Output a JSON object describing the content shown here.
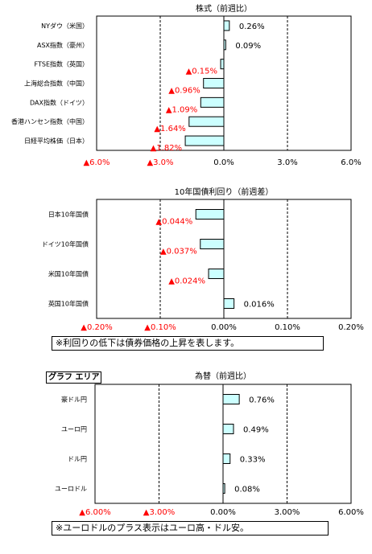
{
  "chart_data": [
    {
      "type": "bar",
      "orientation": "horizontal",
      "title": "株式（前週比）",
      "categories": [
        "NYダウ（米国）",
        "ASX指数（豪州）",
        "FTSE指数（英国）",
        "上海総合指数（中国）",
        "DAX指数（ドイツ）",
        "香港ハンセン指数（中国）",
        "日経平均株価（日本）"
      ],
      "values": [
        0.26,
        0.09,
        -0.15,
        -0.96,
        -1.09,
        -1.64,
        -1.82
      ],
      "value_labels": [
        "0.26%",
        "0.09%",
        "▲0.15%",
        "▲0.96%",
        "▲1.09%",
        "▲1.64%",
        "▲1.82%"
      ],
      "xlim": [
        -6,
        6
      ],
      "ticks": [
        -6,
        -3,
        0,
        3,
        6
      ],
      "tick_labels": [
        "▲6.0%",
        "▲3.0%",
        "0.0%",
        "3.0%",
        "6.0%"
      ],
      "grid": true
    },
    {
      "type": "bar",
      "orientation": "horizontal",
      "title": "10年国債利回り（前週差）",
      "categories": [
        "日本10年国債",
        "ドイツ10年国債",
        "米国10年国債",
        "英国10年国債"
      ],
      "values": [
        -0.044,
        -0.037,
        -0.024,
        0.016
      ],
      "value_labels": [
        "▲0.044%",
        "▲0.037%",
        "▲0.024%",
        "0.016%"
      ],
      "xlim": [
        -0.2,
        0.2
      ],
      "ticks": [
        -0.2,
        -0.1,
        0,
        0.1,
        0.2
      ],
      "tick_labels": [
        "▲0.20%",
        "▲0.10%",
        "0.00%",
        "0.10%",
        "0.20%"
      ],
      "grid": true,
      "note": "※利回りの低下は債券価格の上昇を表します。"
    },
    {
      "type": "bar",
      "orientation": "horizontal",
      "title": "為替（前週比）",
      "area_label": "グラフ エリア",
      "categories": [
        "豪ドル円",
        "ユーロ円",
        "ドル円",
        "ユーロドル"
      ],
      "values": [
        0.76,
        0.49,
        0.33,
        0.08
      ],
      "value_labels": [
        "0.76%",
        "0.49%",
        "0.33%",
        "0.08%"
      ],
      "xlim": [
        -6,
        6
      ],
      "ticks": [
        -6,
        -3,
        0,
        3,
        6
      ],
      "tick_labels": [
        "▲6.00%",
        "▲3.00%",
        "0.00%",
        "3.00%",
        "6.00%"
      ],
      "grid": true,
      "note": "※ユーロドルのプラス表示はユーロ高・ドル安。"
    }
  ],
  "colors": {
    "bar_fill": "#ccffff",
    "negative_label": "#ff0000",
    "positive_label": "#000000"
  }
}
